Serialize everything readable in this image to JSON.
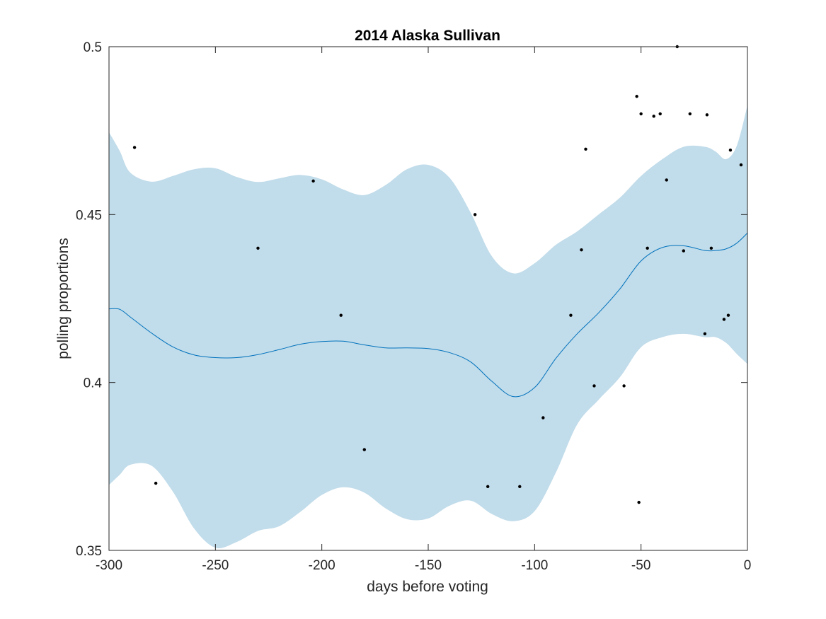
{
  "chart_data": {
    "type": "scatter",
    "title": "2014 Alaska Sullivan",
    "xlabel": "days before voting",
    "ylabel": "polling proportions",
    "xlim": [
      -300,
      0
    ],
    "ylim": [
      0.35,
      0.5
    ],
    "grid": false,
    "xticks": [
      -300,
      -250,
      -200,
      -150,
      -100,
      -50,
      0
    ],
    "xtick_labels": [
      "-300",
      "-250",
      "-200",
      "-150",
      "-100",
      "-50",
      "0"
    ],
    "yticks": [
      0.35,
      0.4,
      0.45,
      0.5
    ],
    "ytick_labels": [
      "0.35",
      "0.4",
      "0.45",
      "0.5"
    ],
    "colors": {
      "band": "#c1dcea",
      "line": "#0072bd",
      "points": "#000000",
      "axes": "#262626"
    },
    "band": {
      "x": [
        -300,
        -295,
        -290,
        -280,
        -270,
        -260,
        -250,
        -240,
        -230,
        -220,
        -210,
        -200,
        -190,
        -180,
        -170,
        -160,
        -150,
        -140,
        -130,
        -120,
        -110,
        -100,
        -90,
        -80,
        -70,
        -60,
        -50,
        -40,
        -30,
        -20,
        -15,
        -10,
        -5,
        0
      ],
      "upper": [
        0.4745,
        0.469,
        0.4625,
        0.4598,
        0.4615,
        0.4635,
        0.4638,
        0.4612,
        0.4597,
        0.4608,
        0.4618,
        0.4605,
        0.4575,
        0.4558,
        0.4588,
        0.4635,
        0.4648,
        0.461,
        0.4505,
        0.4375,
        0.4325,
        0.4355,
        0.441,
        0.445,
        0.45,
        0.455,
        0.4615,
        0.4665,
        0.4702,
        0.4702,
        0.4688,
        0.4665,
        0.4705,
        0.4825
      ],
      "lower": [
        0.3695,
        0.3725,
        0.3755,
        0.3752,
        0.3675,
        0.3565,
        0.3508,
        0.3525,
        0.3558,
        0.3572,
        0.3615,
        0.3665,
        0.3688,
        0.3672,
        0.3625,
        0.3593,
        0.3595,
        0.3633,
        0.3648,
        0.3608,
        0.3587,
        0.3617,
        0.3732,
        0.3875,
        0.3948,
        0.4015,
        0.4105,
        0.4135,
        0.4145,
        0.4135,
        0.4135,
        0.4118,
        0.4085,
        0.4055
      ]
    },
    "series": [
      {
        "type": "line",
        "x": [
          -300,
          -295,
          -290,
          -280,
          -270,
          -260,
          -250,
          -240,
          -230,
          -220,
          -210,
          -200,
          -190,
          -180,
          -170,
          -160,
          -150,
          -140,
          -130,
          -120,
          -110,
          -100,
          -90,
          -80,
          -70,
          -60,
          -50,
          -40,
          -30,
          -20,
          -15,
          -10,
          -5,
          0
        ],
        "values": [
          0.4219,
          0.4218,
          0.4195,
          0.4147,
          0.4106,
          0.4082,
          0.4074,
          0.4074,
          0.4083,
          0.4098,
          0.4114,
          0.4122,
          0.4123,
          0.4112,
          0.4103,
          0.4103,
          0.4101,
          0.4089,
          0.4061,
          0.4003,
          0.3958,
          0.3985,
          0.4072,
          0.4145,
          0.4207,
          0.4278,
          0.4362,
          0.4402,
          0.4407,
          0.4393,
          0.4393,
          0.4398,
          0.4415,
          0.4445
        ]
      },
      {
        "type": "scatter",
        "x": [
          -288,
          -278,
          -230,
          -204,
          -191,
          -180,
          -128,
          -122,
          -107,
          -96,
          -83,
          -78,
          -76,
          -72,
          -58,
          -52,
          -51,
          -50,
          -47,
          -44,
          -41,
          -38,
          -33,
          -30,
          -27,
          -20,
          -19,
          -17,
          -11,
          -9,
          -8,
          -3
        ],
        "values": [
          0.47,
          0.37,
          0.44,
          0.46,
          0.42,
          0.38,
          0.45,
          0.369,
          0.369,
          0.3895,
          0.42,
          0.4395,
          0.4695,
          0.399,
          0.399,
          0.4852,
          0.3643,
          0.48,
          0.44,
          0.4793,
          0.48,
          0.4603,
          0.5,
          0.4392,
          0.48,
          0.4145,
          0.4797,
          0.44,
          0.4188,
          0.42,
          0.4692,
          0.4648
        ]
      }
    ]
  }
}
